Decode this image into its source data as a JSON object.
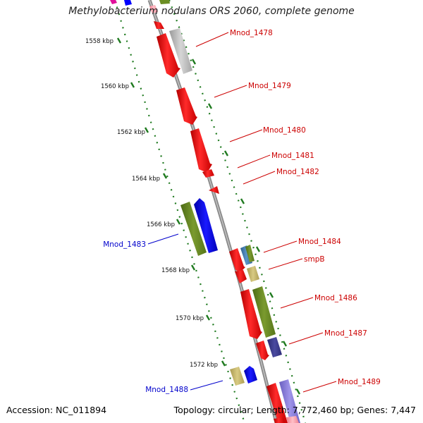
{
  "title": "Methylobacterium nodulans ORS 2060, complete genome",
  "footer": {
    "accession": "Accession: NC_011894",
    "summary": "Topology: circular; Length: 7,772,460 bp; Genes: 7,447"
  },
  "kbp_ticks": [
    "1558 kbp",
    "1560 kbp",
    "1562 kbp",
    "1564 kbp",
    "1566 kbp",
    "1568 kbp",
    "1570 kbp",
    "1572 kbp"
  ],
  "gene_labels": {
    "mnod_1478": "Mnod_1478",
    "mnod_1479": "Mnod_1479",
    "mnod_1480": "Mnod_1480",
    "mnod_1481": "Mnod_1481",
    "mnod_1482": "Mnod_1482",
    "mnod_1483": "Mnod_1483",
    "mnod_1484": "Mnod_1484",
    "smpb": "smpB",
    "mnod_1486": "Mnod_1486",
    "mnod_1487": "Mnod_1487",
    "mnod_1488": "Mnod_1488",
    "mnod_1489": "Mnod_1489"
  },
  "colors": {
    "backbone": "#8a8a8a",
    "tick_green": "#1f7a1f",
    "label_red": "#cc0000",
    "label_blue": "#0000cc",
    "gene_red": "#ff1a1a",
    "gene_olive": "#6b8e23",
    "gene_blue": "#0000ff",
    "gene_khaki": "#c8b86a",
    "gene_steelblue": "#4682b4",
    "gene_navy": "#3f3f8f",
    "gene_lavender": "#8a7fd8",
    "gene_grey": "#bdbdbd",
    "gene_pink": "#ff9ca8",
    "gene_magenta": "#e0109a"
  }
}
